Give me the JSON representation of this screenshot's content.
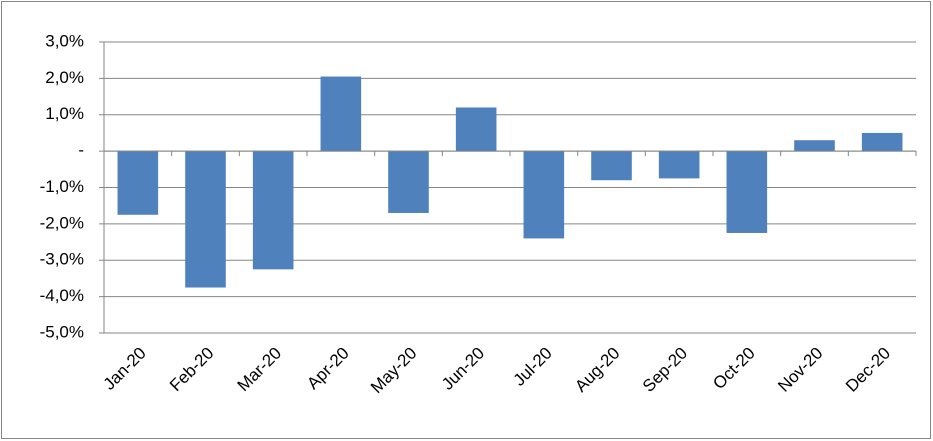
{
  "chart_data": {
    "type": "bar",
    "categories": [
      "Jan-20",
      "Feb-20",
      "Mar-20",
      "Apr-20",
      "May-20",
      "Jun-20",
      "Jul-20",
      "Aug-20",
      "Sep-20",
      "Oct-20",
      "Nov-20",
      "Dec-20"
    ],
    "values": [
      -1.75,
      -3.75,
      -3.25,
      2.05,
      -1.7,
      1.2,
      -2.4,
      -0.8,
      -0.75,
      -2.25,
      0.3,
      0.5
    ],
    "color": "#4f81bd",
    "ylim": [
      -5,
      3
    ],
    "yticks": [
      {
        "value": -5,
        "label": "-5,0%"
      },
      {
        "value": -4,
        "label": "-4,0%"
      },
      {
        "value": -3,
        "label": "-3,0%"
      },
      {
        "value": -2,
        "label": "-2,0%"
      },
      {
        "value": -1,
        "label": "-1,0%"
      },
      {
        "value": 0,
        "label": "-"
      },
      {
        "value": 1,
        "label": "1,0%"
      },
      {
        "value": 2,
        "label": "2,0%"
      },
      {
        "value": 3,
        "label": "3,0%"
      }
    ],
    "grid": true
  }
}
